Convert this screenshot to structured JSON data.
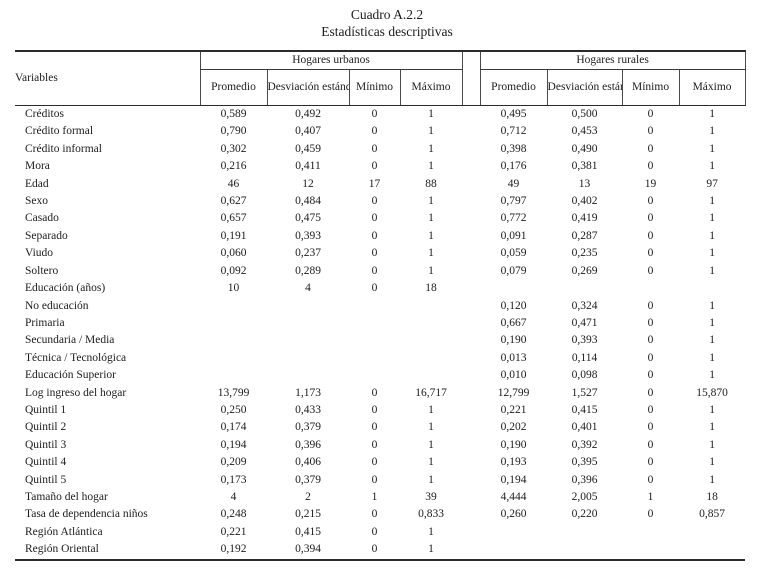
{
  "page": {
    "title_line1": "Cuadro A.2.2",
    "title_line2": "Estadísticas descriptivas"
  },
  "table": {
    "variables_header": "Variables",
    "groups": [
      {
        "label": "Hogares urbanos",
        "columns": [
          "Promedio",
          "Desviación estándar",
          "Mínimo",
          "Máximo"
        ]
      },
      {
        "label": "Hogares rurales",
        "columns": [
          "Promedio",
          "Desviación estándar",
          "Mínimo",
          "Máximo"
        ]
      }
    ],
    "rows": [
      {
        "variable": "Créditos",
        "values": [
          "0,589",
          "0,492",
          "0",
          "1",
          "0,495",
          "0,500",
          "0",
          "1"
        ]
      },
      {
        "variable": "Crédito formal",
        "values": [
          "0,790",
          "0,407",
          "0",
          "1",
          "0,712",
          "0,453",
          "0",
          "1"
        ]
      },
      {
        "variable": "Crédito informal",
        "values": [
          "0,302",
          "0,459",
          "0",
          "1",
          "0,398",
          "0,490",
          "0",
          "1"
        ]
      },
      {
        "variable": "Mora",
        "values": [
          "0,216",
          "0,411",
          "0",
          "1",
          "0,176",
          "0,381",
          "0",
          "1"
        ]
      },
      {
        "variable": "Edad",
        "values": [
          "46",
          "12",
          "17",
          "88",
          "49",
          "13",
          "19",
          "97"
        ]
      },
      {
        "variable": "Sexo",
        "values": [
          "0,627",
          "0,484",
          "0",
          "1",
          "0,797",
          "0,402",
          "0",
          "1"
        ]
      },
      {
        "variable": "Casado",
        "values": [
          "0,657",
          "0,475",
          "0",
          "1",
          "0,772",
          "0,419",
          "0",
          "1"
        ]
      },
      {
        "variable": "Separado",
        "values": [
          "0,191",
          "0,393",
          "0",
          "1",
          "0,091",
          "0,287",
          "0",
          "1"
        ]
      },
      {
        "variable": "Viudo",
        "values": [
          "0,060",
          "0,237",
          "0",
          "1",
          "0,059",
          "0,235",
          "0",
          "1"
        ]
      },
      {
        "variable": "Soltero",
        "values": [
          "0,092",
          "0,289",
          "0",
          "1",
          "0,079",
          "0,269",
          "0",
          "1"
        ]
      },
      {
        "variable": "Educación (años)",
        "values": [
          "10",
          "4",
          "0",
          "18",
          "",
          "",
          "",
          ""
        ]
      },
      {
        "variable": "No educación",
        "values": [
          "",
          "",
          "",
          "",
          "0,120",
          "0,324",
          "0",
          "1"
        ]
      },
      {
        "variable": "Primaria",
        "values": [
          "",
          "",
          "",
          "",
          "0,667",
          "0,471",
          "0",
          "1"
        ]
      },
      {
        "variable": "Secundaria / Media",
        "values": [
          "",
          "",
          "",
          "",
          "0,190",
          "0,393",
          "0",
          "1"
        ]
      },
      {
        "variable": "Técnica / Tecnológica",
        "values": [
          "",
          "",
          "",
          "",
          "0,013",
          "0,114",
          "0",
          "1"
        ]
      },
      {
        "variable": "Educación Superior",
        "values": [
          "",
          "",
          "",
          "",
          "0,010",
          "0,098",
          "0",
          "1"
        ]
      },
      {
        "variable": "Log ingreso del hogar",
        "values": [
          "13,799",
          "1,173",
          "0",
          "16,717",
          "12,799",
          "1,527",
          "0",
          "15,870"
        ]
      },
      {
        "variable": "Quintil 1",
        "values": [
          "0,250",
          "0,433",
          "0",
          "1",
          "0,221",
          "0,415",
          "0",
          "1"
        ]
      },
      {
        "variable": "Quintil 2",
        "values": [
          "0,174",
          "0,379",
          "0",
          "1",
          "0,202",
          "0,401",
          "0",
          "1"
        ]
      },
      {
        "variable": "Quintil 3",
        "values": [
          "0,194",
          "0,396",
          "0",
          "1",
          "0,190",
          "0,392",
          "0",
          "1"
        ]
      },
      {
        "variable": "Quintil 4",
        "values": [
          "0,209",
          "0,406",
          "0",
          "1",
          "0,193",
          "0,395",
          "0",
          "1"
        ]
      },
      {
        "variable": "Quintil 5",
        "values": [
          "0,173",
          "0,379",
          "0",
          "1",
          "0,194",
          "0,396",
          "0",
          "1"
        ]
      },
      {
        "variable": "Tamaño del hogar",
        "values": [
          "4",
          "2",
          "1",
          "39",
          "4,444",
          "2,005",
          "1",
          "18"
        ]
      },
      {
        "variable": "Tasa de dependencia niños",
        "values": [
          "0,248",
          "0,215",
          "0",
          "0,833",
          "0,260",
          "0,220",
          "0",
          "0,857"
        ]
      },
      {
        "variable": "Región Atlántica",
        "values": [
          "0,221",
          "0,415",
          "0",
          "1",
          "",
          "",
          "",
          ""
        ]
      },
      {
        "variable": "Región Oriental",
        "values": [
          "0,192",
          "0,394",
          "0",
          "1",
          "",
          "",
          "",
          ""
        ]
      }
    ]
  },
  "colors": {
    "text": "#1c1c1c",
    "rule": "#2b2b2b",
    "tick": "#4a4a4a",
    "background": "#ffffff"
  }
}
